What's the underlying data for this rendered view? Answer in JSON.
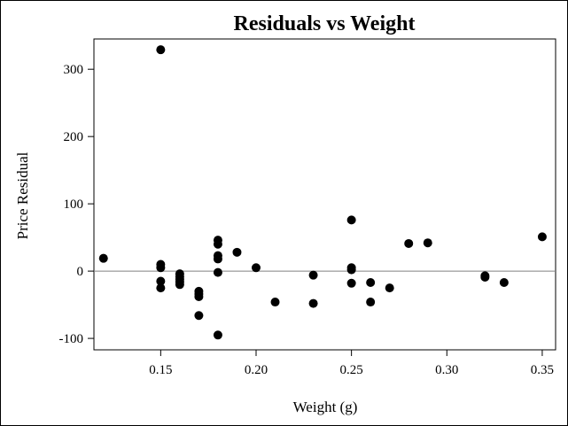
{
  "chart_data": {
    "type": "scatter",
    "title": "Residuals vs Weight",
    "xlabel": "Weight (g)",
    "ylabel": "Price Residual",
    "xlim": [
      0.115,
      0.357
    ],
    "ylim": [
      -117,
      345
    ],
    "xticks": [
      0.15,
      0.2,
      0.25,
      0.3,
      0.35
    ],
    "xtick_labels": [
      "0.15",
      "0.20",
      "0.25",
      "0.30",
      "0.35"
    ],
    "yticks": [
      -100,
      0,
      100,
      200,
      300
    ],
    "ytick_labels": [
      "-100",
      "0",
      "100",
      "200",
      "300"
    ],
    "reference_line_y": 0,
    "grid": false,
    "legend": "none",
    "point_color": "#000000",
    "points": [
      {
        "x": 0.12,
        "y": 19
      },
      {
        "x": 0.15,
        "y": 329
      },
      {
        "x": 0.15,
        "y": 10
      },
      {
        "x": 0.15,
        "y": 5
      },
      {
        "x": 0.15,
        "y": -15
      },
      {
        "x": 0.15,
        "y": -25
      },
      {
        "x": 0.16,
        "y": -4
      },
      {
        "x": 0.16,
        "y": -8
      },
      {
        "x": 0.16,
        "y": -12
      },
      {
        "x": 0.16,
        "y": -16
      },
      {
        "x": 0.16,
        "y": -20
      },
      {
        "x": 0.17,
        "y": -30
      },
      {
        "x": 0.17,
        "y": -34
      },
      {
        "x": 0.17,
        "y": -38
      },
      {
        "x": 0.17,
        "y": -66
      },
      {
        "x": 0.18,
        "y": 46
      },
      {
        "x": 0.18,
        "y": 40
      },
      {
        "x": 0.18,
        "y": 23
      },
      {
        "x": 0.18,
        "y": 18
      },
      {
        "x": 0.18,
        "y": -2
      },
      {
        "x": 0.18,
        "y": -95
      },
      {
        "x": 0.19,
        "y": 28
      },
      {
        "x": 0.2,
        "y": 5
      },
      {
        "x": 0.21,
        "y": -46
      },
      {
        "x": 0.23,
        "y": -6
      },
      {
        "x": 0.23,
        "y": -48
      },
      {
        "x": 0.25,
        "y": 76
      },
      {
        "x": 0.25,
        "y": 5
      },
      {
        "x": 0.25,
        "y": 2
      },
      {
        "x": 0.25,
        "y": -18
      },
      {
        "x": 0.26,
        "y": -17
      },
      {
        "x": 0.26,
        "y": -46
      },
      {
        "x": 0.27,
        "y": -25
      },
      {
        "x": 0.28,
        "y": 41
      },
      {
        "x": 0.29,
        "y": 42
      },
      {
        "x": 0.32,
        "y": -7
      },
      {
        "x": 0.32,
        "y": -9
      },
      {
        "x": 0.33,
        "y": -17
      },
      {
        "x": 0.35,
        "y": 51
      }
    ]
  }
}
